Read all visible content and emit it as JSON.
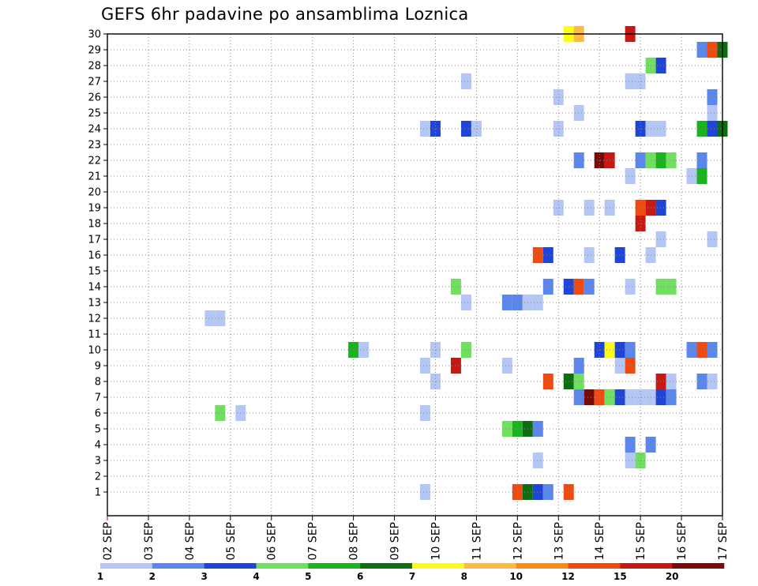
{
  "chart_data": {
    "type": "heatmap",
    "title": "GEFS 6hr padavine po ansamblima Loznica",
    "x_labels": [
      "02 SEP",
      "03 SEP",
      "04 SEP",
      "05 SEP",
      "06 SEP",
      "07 SEP",
      "08 SEP",
      "09 SEP",
      "10 SEP",
      "11 SEP",
      "12 SEP",
      "13 SEP",
      "14 SEP",
      "15 SEP",
      "16 SEP",
      "17 SEP"
    ],
    "y_labels": [
      "1",
      "2",
      "3",
      "4",
      "5",
      "6",
      "7",
      "8",
      "9",
      "10",
      "11",
      "12",
      "13",
      "14",
      "15",
      "16",
      "17",
      "18",
      "19",
      "20",
      "21",
      "22",
      "23",
      "24",
      "25",
      "26",
      "27",
      "28",
      "29",
      "30"
    ],
    "x_range": [
      "02 SEP 00z",
      "17 SEP 00z"
    ],
    "y_range": [
      0,
      30
    ],
    "time_step_hours": 6,
    "grid": "dotted",
    "legend_placement": "bottom",
    "legend": {
      "labels": [
        "1",
        "2",
        "3",
        "4",
        "5",
        "6",
        "7",
        "8",
        "10",
        "12",
        "15",
        "20"
      ],
      "colors": [
        "#b3c6f6",
        "#5a86ee",
        "#1f45d8",
        "#6fe05e",
        "#19b41c",
        "#0b6e10",
        "#fcfc16",
        "#fdbb41",
        "#fc8a14",
        "#f04a10",
        "#c81812",
        "#7a0a06"
      ]
    },
    "cells": [
      {
        "member": 1,
        "t": "09 SEP 18z",
        "c": 0
      },
      {
        "member": 1,
        "t": "12 SEP 00z",
        "c": 9
      },
      {
        "member": 1,
        "t": "12 SEP 06z",
        "c": 5
      },
      {
        "member": 1,
        "t": "12 SEP 12z",
        "c": 2
      },
      {
        "member": 1,
        "t": "12 SEP 18z",
        "c": 1
      },
      {
        "member": 1,
        "t": "13 SEP 06z",
        "c": 9
      },
      {
        "member": 3,
        "t": "12 SEP 12z",
        "c": 0
      },
      {
        "member": 4,
        "t": "14 SEP 18z",
        "c": 1
      },
      {
        "member": 4,
        "t": "15 SEP 06z",
        "c": 1
      },
      {
        "member": 3,
        "t": "14 SEP 18z",
        "c": 0
      },
      {
        "member": 3,
        "t": "15 SEP 00z",
        "c": 3
      },
      {
        "member": 5,
        "t": "11 SEP 18z",
        "c": 3
      },
      {
        "member": 5,
        "t": "12 SEP 00z",
        "c": 4
      },
      {
        "member": 5,
        "t": "12 SEP 06z",
        "c": 5
      },
      {
        "member": 5,
        "t": "12 SEP 12z",
        "c": 1
      },
      {
        "member": 6,
        "t": "04 SEP 18z",
        "c": 3
      },
      {
        "member": 6,
        "t": "05 SEP 06z",
        "c": 0
      },
      {
        "member": 6,
        "t": "09 SEP 18z",
        "c": 0
      },
      {
        "member": 7,
        "t": "13 SEP 12z",
        "c": 1
      },
      {
        "member": 7,
        "t": "13 SEP 18z",
        "c": 11
      },
      {
        "member": 7,
        "t": "14 SEP 00z",
        "c": 9
      },
      {
        "member": 7,
        "t": "14 SEP 06z",
        "c": 3
      },
      {
        "member": 7,
        "t": "14 SEP 12z",
        "c": 2
      },
      {
        "member": 7,
        "t": "14 SEP 18z",
        "c": 0
      },
      {
        "member": 7,
        "t": "15 SEP 00z",
        "c": 0
      },
      {
        "member": 7,
        "t": "15 SEP 06z",
        "c": 0
      },
      {
        "member": 7,
        "t": "15 SEP 12z",
        "c": 2
      },
      {
        "member": 7,
        "t": "15 SEP 18z",
        "c": 1
      },
      {
        "member": 8,
        "t": "10 SEP 00z",
        "c": 0
      },
      {
        "member": 8,
        "t": "12 SEP 18z",
        "c": 9
      },
      {
        "member": 8,
        "t": "13 SEP 06z",
        "c": 5
      },
      {
        "member": 8,
        "t": "13 SEP 12z",
        "c": 3
      },
      {
        "member": 8,
        "t": "15 SEP 12z",
        "c": 10
      },
      {
        "member": 8,
        "t": "15 SEP 18z",
        "c": 0
      },
      {
        "member": 8,
        "t": "16 SEP 12z",
        "c": 1
      },
      {
        "member": 8,
        "t": "16 SEP 18z",
        "c": 0
      },
      {
        "member": 9,
        "t": "09 SEP 18z",
        "c": 0
      },
      {
        "member": 9,
        "t": "10 SEP 12z",
        "c": 10
      },
      {
        "member": 9,
        "t": "11 SEP 18z",
        "c": 0
      },
      {
        "member": 9,
        "t": "13 SEP 12z",
        "c": 1
      },
      {
        "member": 9,
        "t": "14 SEP 12z",
        "c": 0
      },
      {
        "member": 9,
        "t": "14 SEP 18z",
        "c": 9
      },
      {
        "member": 10,
        "t": "08 SEP 00z",
        "c": 4
      },
      {
        "member": 10,
        "t": "08 SEP 06z",
        "c": 0
      },
      {
        "member": 10,
        "t": "10 SEP 00z",
        "c": 0
      },
      {
        "member": 10,
        "t": "10 SEP 18z",
        "c": 3
      },
      {
        "member": 10,
        "t": "14 SEP 00z",
        "c": 2
      },
      {
        "member": 10,
        "t": "14 SEP 06z",
        "c": 6
      },
      {
        "member": 10,
        "t": "14 SEP 12z",
        "c": 2
      },
      {
        "member": 10,
        "t": "14 SEP 18z",
        "c": 1
      },
      {
        "member": 10,
        "t": "16 SEP 06z",
        "c": 1
      },
      {
        "member": 10,
        "t": "16 SEP 12z",
        "c": 9
      },
      {
        "member": 10,
        "t": "16 SEP 18z",
        "c": 1
      },
      {
        "member": 12,
        "t": "04 SEP 12z",
        "c": 0
      },
      {
        "member": 12,
        "t": "04 SEP 18z",
        "c": 0
      },
      {
        "member": 13,
        "t": "10 SEP 18z",
        "c": 0
      },
      {
        "member": 13,
        "t": "11 SEP 18z",
        "c": 1
      },
      {
        "member": 13,
        "t": "12 SEP 00z",
        "c": 1
      },
      {
        "member": 13,
        "t": "12 SEP 06z",
        "c": 0
      },
      {
        "member": 13,
        "t": "12 SEP 12z",
        "c": 0
      },
      {
        "member": 14,
        "t": "10 SEP 12z",
        "c": 3
      },
      {
        "member": 14,
        "t": "12 SEP 18z",
        "c": 1
      },
      {
        "member": 14,
        "t": "13 SEP 06z",
        "c": 2
      },
      {
        "member": 14,
        "t": "13 SEP 12z",
        "c": 9
      },
      {
        "member": 14,
        "t": "13 SEP 18z",
        "c": 1
      },
      {
        "member": 14,
        "t": "14 SEP 18z",
        "c": 0
      },
      {
        "member": 14,
        "t": "15 SEP 12z",
        "c": 3
      },
      {
        "member": 14,
        "t": "15 SEP 18z",
        "c": 3
      },
      {
        "member": 16,
        "t": "12 SEP 12z",
        "c": 9
      },
      {
        "member": 16,
        "t": "12 SEP 18z",
        "c": 2
      },
      {
        "member": 16,
        "t": "13 SEP 18z",
        "c": 0
      },
      {
        "member": 16,
        "t": "14 SEP 12z",
        "c": 2
      },
      {
        "member": 16,
        "t": "15 SEP 06z",
        "c": 0
      },
      {
        "member": 17,
        "t": "15 SEP 12z",
        "c": 0
      },
      {
        "member": 17,
        "t": "16 SEP 18z",
        "c": 0
      },
      {
        "member": 18,
        "t": "15 SEP 00z",
        "c": 10
      },
      {
        "member": 19,
        "t": "13 SEP 00z",
        "c": 0
      },
      {
        "member": 19,
        "t": "13 SEP 18z",
        "c": 0
      },
      {
        "member": 19,
        "t": "14 SEP 06z",
        "c": 0
      },
      {
        "member": 19,
        "t": "15 SEP 00z",
        "c": 9
      },
      {
        "member": 19,
        "t": "15 SEP 06z",
        "c": 10
      },
      {
        "member": 19,
        "t": "15 SEP 12z",
        "c": 2
      },
      {
        "member": 21,
        "t": "14 SEP 18z",
        "c": 0
      },
      {
        "member": 21,
        "t": "16 SEP 06z",
        "c": 0
      },
      {
        "member": 21,
        "t": "16 SEP 12z",
        "c": 4
      },
      {
        "member": 22,
        "t": "13 SEP 12z",
        "c": 1
      },
      {
        "member": 22,
        "t": "14 SEP 00z",
        "c": 11
      },
      {
        "member": 22,
        "t": "14 SEP 06z",
        "c": 10
      },
      {
        "member": 22,
        "t": "15 SEP 00z",
        "c": 1
      },
      {
        "member": 22,
        "t": "15 SEP 06z",
        "c": 3
      },
      {
        "member": 22,
        "t": "15 SEP 12z",
        "c": 4
      },
      {
        "member": 22,
        "t": "15 SEP 18z",
        "c": 3
      },
      {
        "member": 22,
        "t": "16 SEP 12z",
        "c": 1
      },
      {
        "member": 24,
        "t": "09 SEP 18z",
        "c": 0
      },
      {
        "member": 24,
        "t": "10 SEP 00z",
        "c": 2
      },
      {
        "member": 24,
        "t": "10 SEP 18z",
        "c": 2
      },
      {
        "member": 24,
        "t": "11 SEP 00z",
        "c": 0
      },
      {
        "member": 24,
        "t": "13 SEP 00z",
        "c": 0
      },
      {
        "member": 24,
        "t": "15 SEP 00z",
        "c": 2
      },
      {
        "member": 24,
        "t": "15 SEP 06z",
        "c": 0
      },
      {
        "member": 24,
        "t": "15 SEP 12z",
        "c": 0
      },
      {
        "member": 24,
        "t": "16 SEP 12z",
        "c": 4
      },
      {
        "member": 24,
        "t": "16 SEP 18z",
        "c": 2
      },
      {
        "member": 24,
        "t": "17 SEP 00z",
        "c": 5
      },
      {
        "member": 25,
        "t": "13 SEP 12z",
        "c": 0
      },
      {
        "member": 25,
        "t": "16 SEP 18z",
        "c": 0
      },
      {
        "member": 26,
        "t": "13 SEP 00z",
        "c": 0
      },
      {
        "member": 26,
        "t": "16 SEP 18z",
        "c": 1
      },
      {
        "member": 27,
        "t": "10 SEP 18z",
        "c": 0
      },
      {
        "member": 27,
        "t": "14 SEP 18z",
        "c": 0
      },
      {
        "member": 27,
        "t": "15 SEP 00z",
        "c": 0
      },
      {
        "member": 28,
        "t": "15 SEP 06z",
        "c": 3
      },
      {
        "member": 28,
        "t": "15 SEP 12z",
        "c": 2
      },
      {
        "member": 29,
        "t": "16 SEP 12z",
        "c": 1
      },
      {
        "member": 29,
        "t": "16 SEP 18z",
        "c": 9
      },
      {
        "member": 29,
        "t": "17 SEP 00z",
        "c": 5
      },
      {
        "member": 30,
        "t": "13 SEP 06z",
        "c": 6
      },
      {
        "member": 30,
        "t": "13 SEP 12z",
        "c": 7
      },
      {
        "member": 30,
        "t": "14 SEP 18z",
        "c": 10
      }
    ]
  }
}
